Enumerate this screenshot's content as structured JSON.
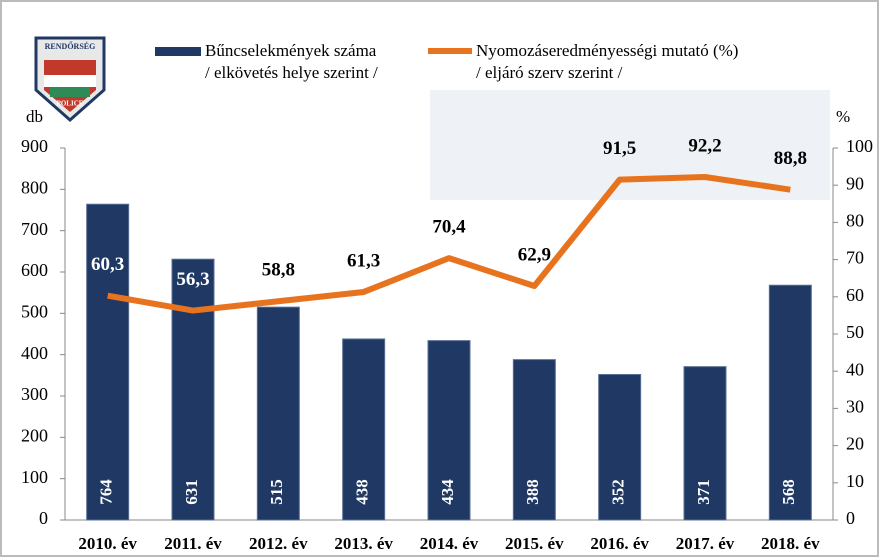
{
  "chart_data": {
    "type": "bar-line",
    "categories": [
      "2010. év",
      "2011. év",
      "2012. év",
      "2013. év",
      "2014. év",
      "2015. év",
      "2016. év",
      "2017. év",
      "2018. év"
    ],
    "series": [
      {
        "name": "Bűncselekmények száma\n/ elkövetés helye szerint /",
        "type": "bar",
        "color": "#1f3864",
        "values": [
          764,
          631,
          515,
          438,
          434,
          388,
          352,
          371,
          568
        ]
      },
      {
        "name": "Nyomozáseredményességi mutató (%)\n/ eljáró szerv szerint /",
        "type": "line",
        "color": "#e8731e",
        "axis": "y2",
        "values": [
          60.3,
          56.3,
          58.8,
          61.3,
          70.4,
          62.9,
          91.5,
          92.2,
          88.8
        ],
        "value_labels": [
          "60,3",
          "56,3",
          "58,8",
          "61,3",
          "70,4",
          "62,9",
          "91,5",
          "92,2",
          "88,8"
        ]
      }
    ],
    "y_label": "db",
    "y2_label": "%",
    "ylim": [
      0,
      900
    ],
    "yticks": [
      0,
      100,
      200,
      300,
      400,
      500,
      600,
      700,
      800,
      900
    ],
    "y2lim": [
      0,
      100
    ],
    "y2ticks": [
      0,
      10,
      20,
      30,
      40,
      50,
      60,
      70,
      80,
      90,
      100
    ]
  }
}
